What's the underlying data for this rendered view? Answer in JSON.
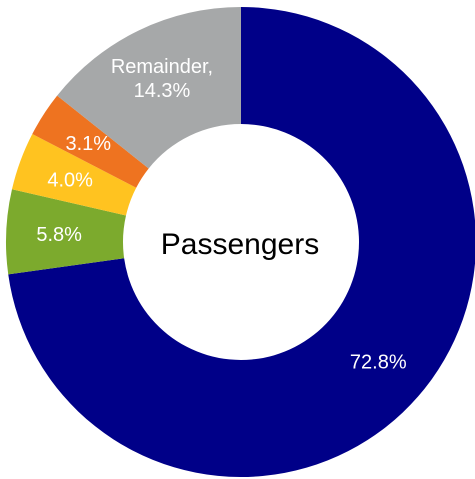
{
  "chart_data": {
    "type": "pie",
    "donut": true,
    "center_label": "Passengers",
    "slices": [
      {
        "label": "72.8%",
        "value": 72.8,
        "color": "#000088",
        "text_color": "#ffffff"
      },
      {
        "label": "5.8%",
        "value": 5.8,
        "color": "#7caa2d",
        "text_color": "#ffffff"
      },
      {
        "label": "4.0%",
        "value": 4.0,
        "color": "#ffc320",
        "text_color": "#ffffff"
      },
      {
        "label": "3.1%",
        "value": 3.1,
        "color": "#ee7320",
        "text_color": "#ffffff"
      },
      {
        "label": "Remainder,\n14.3%",
        "value": 14.3,
        "color": "#a6a8a9",
        "text_color": "#ffffff"
      }
    ]
  }
}
